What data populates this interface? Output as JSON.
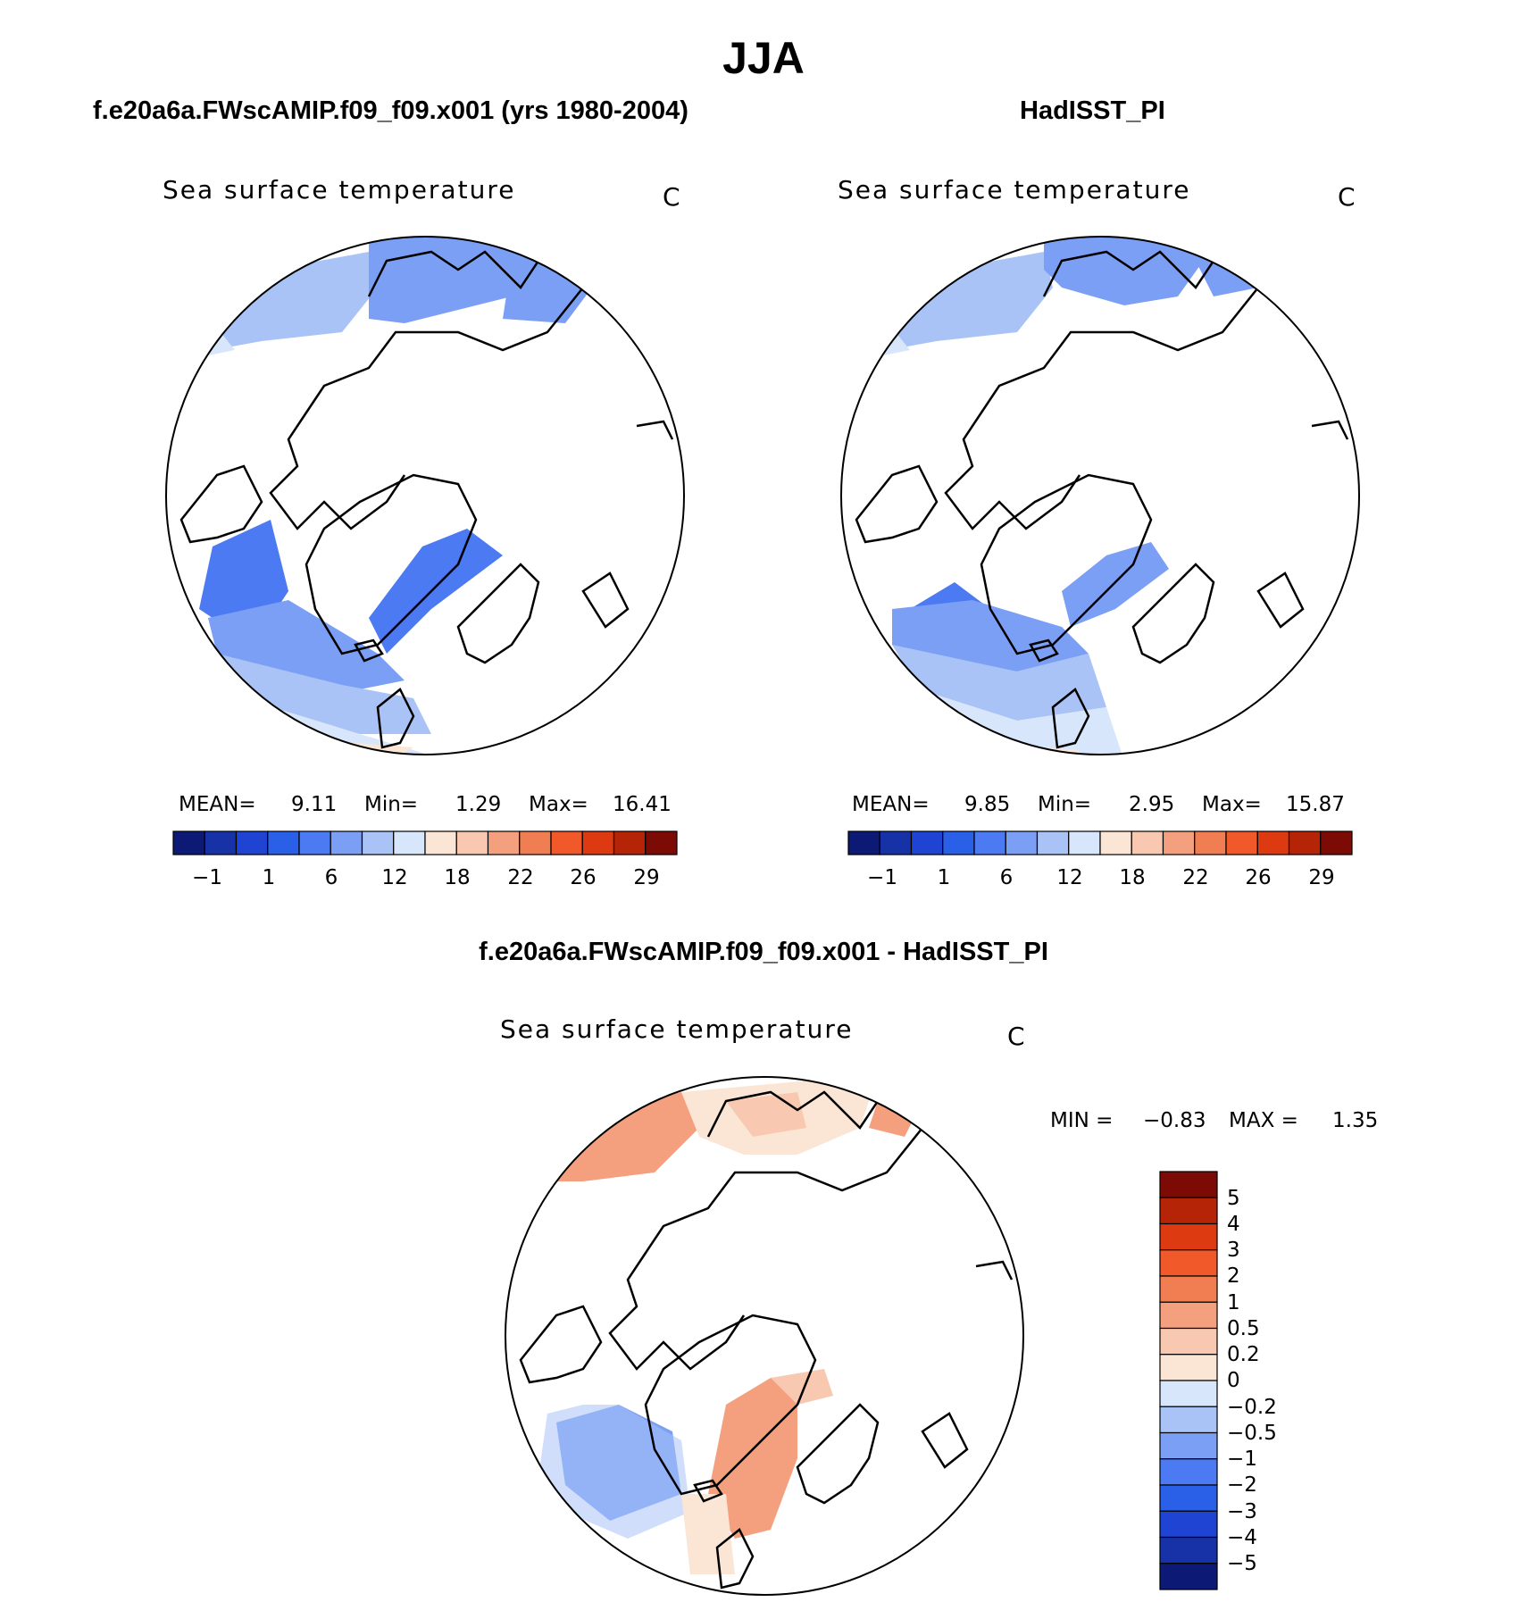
{
  "title": "JJA",
  "colors": {
    "abs": [
      "#0d1a75",
      "#1632a6",
      "#1f44d4",
      "#2a5fe8",
      "#4b7af2",
      "#7a9ff5",
      "#aac3f7",
      "#d7e6fb",
      "#fbe6d6",
      "#f8c9b0",
      "#f4a07e",
      "#f07e52",
      "#f2592a",
      "#de3a12",
      "#b52407",
      "#7d0b05"
    ],
    "diff": [
      "#7d0b05",
      "#b52407",
      "#de3a12",
      "#f2592a",
      "#f07e52",
      "#f4a07e",
      "#f8c9b0",
      "#fbe6d6",
      "#d7e6fb",
      "#aac3f7",
      "#7a9ff5",
      "#4b7af2",
      "#2a5fe8",
      "#1f44d4",
      "#1632a6",
      "#0d1a75"
    ]
  },
  "panels": [
    {
      "title": "f.e20a6a.FWscAMIP.f09_f09.x001 (yrs 1980-2004)",
      "variable": "Sea surface temperature",
      "units": "C",
      "mean_label": "MEAN=",
      "mean": "9.11",
      "min_label": "Min=",
      "min": "1.29",
      "max_label": "Max=",
      "max": "16.41",
      "colorbar_ticks": [
        "−1",
        "1",
        "6",
        "12",
        "18",
        "22",
        "26",
        "29"
      ]
    },
    {
      "title": "HadISST_PI",
      "variable": "Sea surface temperature",
      "units": "C",
      "mean_label": "MEAN=",
      "mean": "9.85",
      "min_label": "Min=",
      "min": "2.95",
      "max_label": "Max=",
      "max": "15.87",
      "colorbar_ticks": [
        "−1",
        "1",
        "6",
        "12",
        "18",
        "22",
        "26",
        "29"
      ]
    }
  ],
  "difference": {
    "title": "f.e20a6a.FWscAMIP.f09_f09.x001 - HadISST_PI",
    "variable": "Sea surface temperature",
    "units": "C",
    "min_label": "MIN =",
    "min": "−0.83",
    "max_label": "MAX =",
    "max": "1.35",
    "colorbar_ticks": [
      "5",
      "4",
      "3",
      "2",
      "1",
      "0.5",
      "0.2",
      "0",
      "−0.2",
      "−0.5",
      "−1",
      "−2",
      "−3",
      "−4",
      "−5"
    ]
  }
}
